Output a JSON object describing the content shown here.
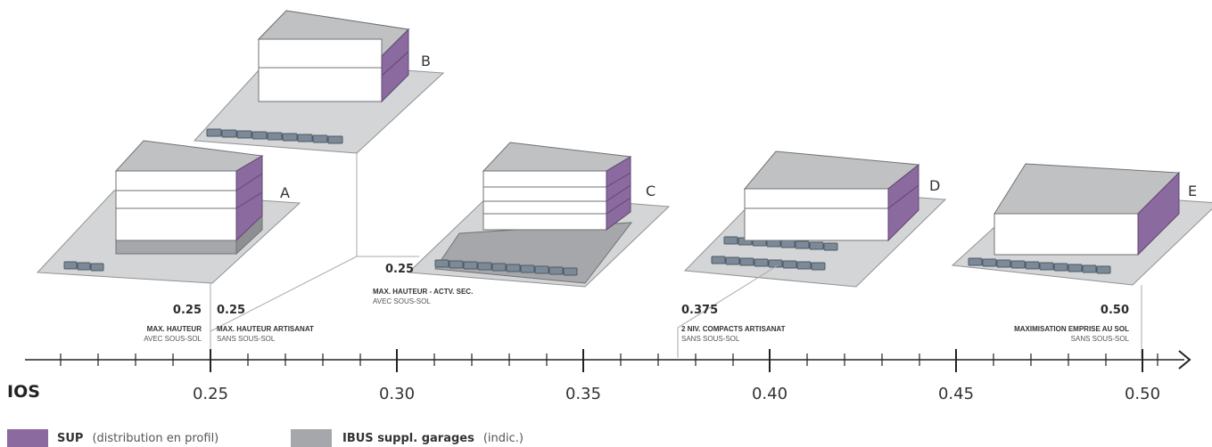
{
  "axis": {
    "name": "IOS",
    "ticks": [
      "0.25",
      "0.30",
      "0.35",
      "0.40",
      "0.45",
      "0.50"
    ]
  },
  "colors": {
    "sup": "#8b6aa0",
    "ibus": "#a5a7aa",
    "plate": "#d4d5d6",
    "roof": "#bfc0c1",
    "floor": "#ffffff"
  },
  "buildings": {
    "a": {
      "letter": "A",
      "value": "0.25",
      "line1": "MAX. HAUTEUR",
      "line2": "AVEC SOUS-SOL",
      "basement": "SOUS-SOL"
    },
    "b": {
      "letter": "B",
      "value": "0.25",
      "line1": "MAX. HAUTEUR ARTISANAT",
      "line2": "SANS SOUS-SOL"
    },
    "c": {
      "letter": "C",
      "value": "0.25",
      "line1": "MAX. HAUTEUR - ACTV. SEC.",
      "line2": "AVEC SOUS-SOL"
    },
    "d": {
      "letter": "D",
      "value": "0.375",
      "line1": "2 NIV. COMPACTS ARTISANAT",
      "line2": "SANS SOUS-SOL"
    },
    "e": {
      "letter": "E",
      "value": "0.50",
      "line1": "MAXIMISATION EMPRISE AU SOL",
      "line2": "SANS SOUS-SOL"
    }
  },
  "legend": {
    "sup_bold": "SUP",
    "sup_rest": "(distribution en profil)",
    "ibus_bold": "IBUS suppl. garages",
    "ibus_rest": "(indic.)"
  }
}
